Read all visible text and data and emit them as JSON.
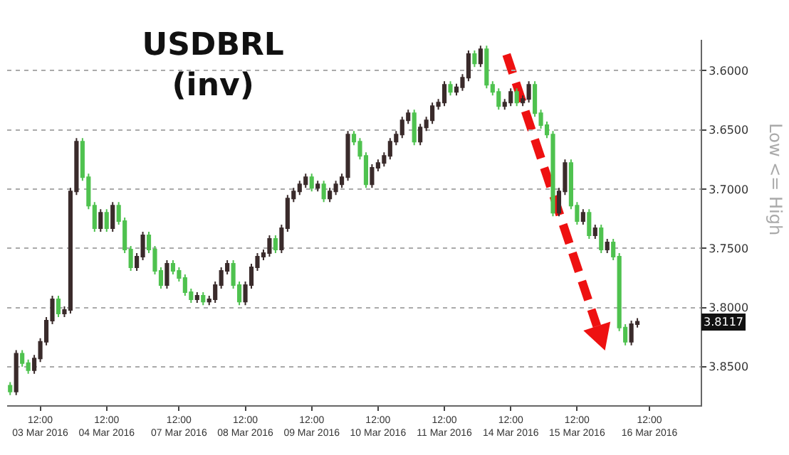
{
  "chart_data": {
    "type": "candlestick",
    "title": "USDBRL\n(inv)",
    "ylabel": "Low <= High",
    "annotations": [
      "3.8117"
    ],
    "categories": [
      null,
      null,
      null,
      null,
      null,
      "12:00\n03 Mar 2016",
      null,
      null,
      null,
      null,
      null,
      null,
      null,
      null,
      null,
      null,
      "12:00\n04 Mar 2016",
      null,
      null,
      null,
      null,
      null,
      null,
      null,
      null,
      null,
      null,
      null,
      "12:00\n07 Mar 2016",
      null,
      null,
      null,
      null,
      null,
      null,
      null,
      null,
      null,
      null,
      "12:00\n08 Mar 2016",
      null,
      null,
      null,
      null,
      null,
      null,
      null,
      null,
      null,
      null,
      "12:00\n09 Mar 2016",
      null,
      null,
      null,
      null,
      null,
      null,
      null,
      null,
      null,
      null,
      "12:00\n10 Mar 2016",
      null,
      null,
      null,
      null,
      null,
      null,
      null,
      null,
      null,
      null,
      "12:00\n11 Mar 2016",
      null,
      null,
      null,
      null,
      null,
      null,
      null,
      null,
      null,
      null,
      "12:00\n14 Mar 2016",
      null,
      null,
      null,
      null,
      null,
      null,
      null,
      null,
      null,
      null,
      "12:00\n15 Mar 2016",
      null,
      null,
      null,
      null,
      null,
      null,
      null,
      null,
      null,
      null,
      null,
      "12:00\n16 Mar 2016",
      null,
      null,
      null,
      null,
      null,
      null,
      null,
      null
    ],
    "ohlc": [
      [
        3.866,
        3.874,
        3.863,
        3.871
      ],
      [
        3.871,
        3.874,
        3.836,
        3.839
      ],
      [
        3.839,
        3.85,
        3.836,
        3.847
      ],
      [
        3.847,
        3.856,
        3.844,
        3.853
      ],
      [
        3.853,
        3.856,
        3.84,
        3.843
      ],
      [
        3.843,
        3.846,
        3.826,
        3.829
      ],
      [
        3.829,
        3.832,
        3.808,
        3.811
      ],
      [
        3.811,
        3.814,
        3.79,
        3.793
      ],
      [
        3.793,
        3.808,
        3.79,
        3.805
      ],
      [
        3.805,
        3.808,
        3.799,
        3.802
      ],
      [
        3.802,
        3.805,
        3.699,
        3.702
      ],
      [
        3.702,
        3.705,
        3.657,
        3.66
      ],
      [
        3.66,
        3.693,
        3.657,
        3.69
      ],
      [
        3.69,
        3.717,
        3.687,
        3.714
      ],
      [
        3.714,
        3.736,
        3.711,
        3.733
      ],
      [
        3.733,
        3.736,
        3.717,
        3.72
      ],
      [
        3.72,
        3.736,
        3.717,
        3.733
      ],
      [
        3.733,
        3.736,
        3.711,
        3.714
      ],
      [
        3.714,
        3.73,
        3.711,
        3.727
      ],
      [
        3.727,
        3.754,
        3.724,
        3.751
      ],
      [
        3.751,
        3.769,
        3.748,
        3.766
      ],
      [
        3.766,
        3.769,
        3.754,
        3.757
      ],
      [
        3.757,
        3.76,
        3.736,
        3.739
      ],
      [
        3.739,
        3.754,
        3.736,
        3.751
      ],
      [
        3.751,
        3.772,
        3.748,
        3.769
      ],
      [
        3.769,
        3.784,
        3.766,
        3.781
      ],
      [
        3.781,
        3.784,
        3.76,
        3.763
      ],
      [
        3.763,
        3.772,
        3.76,
        3.769
      ],
      [
        3.769,
        3.778,
        3.766,
        3.775
      ],
      [
        3.775,
        3.79,
        3.772,
        3.787
      ],
      [
        3.787,
        3.796,
        3.784,
        3.793
      ],
      [
        3.793,
        3.796,
        3.787,
        3.79
      ],
      [
        3.79,
        3.798,
        3.787,
        3.795
      ],
      [
        3.795,
        3.798,
        3.79,
        3.793
      ],
      [
        3.793,
        3.796,
        3.778,
        3.781
      ],
      [
        3.781,
        3.784,
        3.766,
        3.769
      ],
      [
        3.769,
        3.772,
        3.76,
        3.763
      ],
      [
        3.763,
        3.784,
        3.76,
        3.781
      ],
      [
        3.781,
        3.798,
        3.778,
        3.795
      ],
      [
        3.795,
        3.798,
        3.778,
        3.781
      ],
      [
        3.781,
        3.784,
        3.763,
        3.766
      ],
      [
        3.766,
        3.769,
        3.754,
        3.757
      ],
      [
        3.757,
        3.76,
        3.751,
        3.754
      ],
      [
        3.754,
        3.757,
        3.739,
        3.742
      ],
      [
        3.742,
        3.754,
        3.739,
        3.751
      ],
      [
        3.751,
        3.754,
        3.73,
        3.733
      ],
      [
        3.733,
        3.736,
        3.705,
        3.708
      ],
      [
        3.708,
        3.711,
        3.699,
        3.702
      ],
      [
        3.702,
        3.705,
        3.693,
        3.696
      ],
      [
        3.696,
        3.699,
        3.687,
        3.69
      ],
      [
        3.69,
        3.702,
        3.687,
        3.699
      ],
      [
        3.699,
        3.702,
        3.693,
        3.696
      ],
      [
        3.696,
        3.711,
        3.693,
        3.708
      ],
      [
        3.708,
        3.711,
        3.699,
        3.702
      ],
      [
        3.702,
        3.705,
        3.693,
        3.696
      ],
      [
        3.696,
        3.699,
        3.687,
        3.69
      ],
      [
        3.69,
        3.693,
        3.651,
        3.654
      ],
      [
        3.654,
        3.663,
        3.651,
        3.66
      ],
      [
        3.66,
        3.675,
        3.657,
        3.672
      ],
      [
        3.672,
        3.699,
        3.669,
        3.696
      ],
      [
        3.696,
        3.699,
        3.679,
        3.682
      ],
      [
        3.682,
        3.685,
        3.675,
        3.678
      ],
      [
        3.678,
        3.681,
        3.669,
        3.672
      ],
      [
        3.672,
        3.675,
        3.657,
        3.66
      ],
      [
        3.66,
        3.663,
        3.651,
        3.654
      ],
      [
        3.654,
        3.657,
        3.639,
        3.642
      ],
      [
        3.642,
        3.645,
        3.633,
        3.636
      ],
      [
        3.636,
        3.663,
        3.633,
        3.66
      ],
      [
        3.66,
        3.663,
        3.645,
        3.648
      ],
      [
        3.648,
        3.651,
        3.639,
        3.642
      ],
      [
        3.642,
        3.645,
        3.627,
        3.63
      ],
      [
        3.63,
        3.633,
        3.624,
        3.627
      ],
      [
        3.627,
        3.63,
        3.609,
        3.612
      ],
      [
        3.612,
        3.621,
        3.609,
        3.618
      ],
      [
        3.618,
        3.621,
        3.611,
        3.614
      ],
      [
        3.614,
        3.617,
        3.603,
        3.606
      ],
      [
        3.606,
        3.609,
        3.583,
        3.586
      ],
      [
        3.586,
        3.597,
        3.583,
        3.594
      ],
      [
        3.594,
        3.597,
        3.579,
        3.582
      ],
      [
        3.582,
        3.615,
        3.579,
        3.612
      ],
      [
        3.612,
        3.621,
        3.609,
        3.618
      ],
      [
        3.618,
        3.633,
        3.615,
        3.63
      ],
      [
        3.63,
        3.633,
        3.624,
        3.627
      ],
      [
        3.627,
        3.63,
        3.615,
        3.618
      ],
      [
        3.618,
        3.63,
        3.615,
        3.627
      ],
      [
        3.627,
        3.63,
        3.621,
        3.624
      ],
      [
        3.624,
        3.627,
        3.609,
        3.612
      ],
      [
        3.612,
        3.639,
        3.609,
        3.636
      ],
      [
        3.636,
        3.649,
        3.633,
        3.646
      ],
      [
        3.646,
        3.657,
        3.643,
        3.654
      ],
      [
        3.654,
        3.723,
        3.651,
        3.72
      ],
      [
        3.72,
        3.723,
        3.699,
        3.702
      ],
      [
        3.702,
        3.705,
        3.675,
        3.678
      ],
      [
        3.678,
        3.717,
        3.675,
        3.714
      ],
      [
        3.714,
        3.73,
        3.711,
        3.727
      ],
      [
        3.727,
        3.73,
        3.717,
        3.72
      ],
      [
        3.72,
        3.742,
        3.717,
        3.739
      ],
      [
        3.739,
        3.742,
        3.73,
        3.733
      ],
      [
        3.733,
        3.754,
        3.73,
        3.751
      ],
      [
        3.751,
        3.754,
        3.742,
        3.745
      ],
      [
        3.745,
        3.76,
        3.742,
        3.757
      ],
      [
        3.757,
        3.82,
        3.754,
        3.817
      ],
      [
        3.817,
        3.832,
        3.814,
        3.829
      ],
      [
        3.829,
        3.832,
        3.811,
        3.814
      ],
      [
        3.814,
        3.817,
        3.809,
        3.812
      ],
      null,
      null,
      null,
      null,
      null,
      null,
      null,
      null,
      null,
      null
    ],
    "colors": [
      "#4fc24f",
      "#3a2b2b",
      "#4fc24f",
      "#4fc24f",
      "#3a2b2b",
      "#3a2b2b",
      "#3a2b2b",
      "#3a2b2b",
      "#4fc24f",
      "#3a2b2b",
      "#3a2b2b",
      "#3a2b2b",
      "#4fc24f",
      "#4fc24f",
      "#4fc24f",
      "#3a2b2b",
      "#4fc24f",
      "#3a2b2b",
      "#4fc24f",
      "#4fc24f",
      "#4fc24f",
      "#3a2b2b",
      "#3a2b2b",
      "#4fc24f",
      "#4fc24f",
      "#4fc24f",
      "#3a2b2b",
      "#4fc24f",
      "#4fc24f",
      "#4fc24f",
      "#4fc24f",
      "#3a2b2b",
      "#4fc24f",
      "#3a2b2b",
      "#3a2b2b",
      "#3a2b2b",
      "#3a2b2b",
      "#4fc24f",
      "#4fc24f",
      "#3a2b2b",
      "#3a2b2b",
      "#3a2b2b",
      "#3a2b2b",
      "#3a2b2b",
      "#4fc24f",
      "#3a2b2b",
      "#3a2b2b",
      "#3a2b2b",
      "#3a2b2b",
      "#3a2b2b",
      "#4fc24f",
      "#3a2b2b",
      "#4fc24f",
      "#3a2b2b",
      "#3a2b2b",
      "#3a2b2b",
      "#3a2b2b",
      "#4fc24f",
      "#4fc24f",
      "#4fc24f",
      "#3a2b2b",
      "#3a2b2b",
      "#3a2b2b",
      "#3a2b2b",
      "#3a2b2b",
      "#3a2b2b",
      "#3a2b2b",
      "#4fc24f",
      "#3a2b2b",
      "#3a2b2b",
      "#3a2b2b",
      "#3a2b2b",
      "#3a2b2b",
      "#4fc24f",
      "#3a2b2b",
      "#3a2b2b",
      "#3a2b2b",
      "#4fc24f",
      "#3a2b2b",
      "#4fc24f",
      "#4fc24f",
      "#4fc24f",
      "#3a2b2b",
      "#3a2b2b",
      "#4fc24f",
      "#3a2b2b",
      "#3a2b2b",
      "#4fc24f",
      "#4fc24f",
      "#4fc24f",
      "#4fc24f",
      "#3a2b2b",
      "#3a2b2b",
      "#4fc24f",
      "#4fc24f",
      "#3a2b2b",
      "#4fc24f",
      "#3a2b2b",
      "#4fc24f",
      "#3a2b2b",
      "#4fc24f",
      "#4fc24f",
      "#4fc24f",
      "#3a2b2b",
      "#3a2b2b",
      null,
      null,
      null,
      null,
      null,
      null,
      null,
      null,
      null,
      null
    ],
    "ylim": [
      3.8825,
      3.574
    ],
    "yticks": [
      {
        "value": 3.6,
        "label": "3.6000"
      },
      {
        "value": 3.65,
        "label": "3.6500"
      },
      {
        "value": 3.7,
        "label": "3.7000"
      },
      {
        "value": 3.75,
        "label": "3.7500"
      },
      {
        "value": 3.8,
        "label": "3.8000"
      },
      {
        "value": 3.85,
        "label": "3.8500"
      }
    ],
    "grid": "y"
  }
}
